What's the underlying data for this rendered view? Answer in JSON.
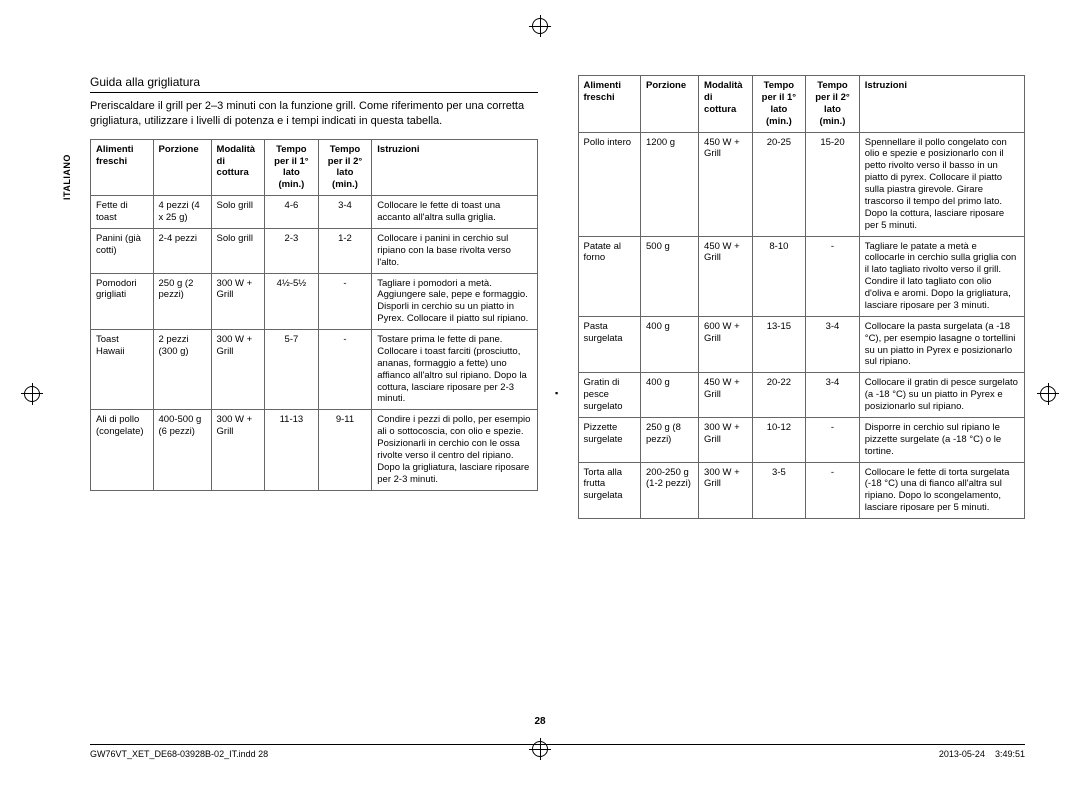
{
  "side_label": "ITALIANO",
  "section_title": "Guida alla grigliatura",
  "intro": "Preriscaldare il grill per 2–3 minuti con la funzione grill.\nCome riferimento per una corretta grigliatura, utilizzare i livelli di potenza e i tempi indicati in questa tabella.",
  "headers": {
    "food": "Alimenti freschi",
    "portion": "Porzione",
    "mode": "Modalità di cottura",
    "time1": "Tempo per il 1° lato (min.)",
    "time2": "Tempo per il 2° lato (min.)",
    "instr": "Istruzioni"
  },
  "left_rows": [
    {
      "food": "Fette di toast",
      "portion": "4 pezzi (4 x 25 g)",
      "mode": "Solo grill",
      "t1": "4-6",
      "t2": "3-4",
      "instr": "Collocare le fette di toast una accanto all'altra sulla griglia."
    },
    {
      "food": "Panini (già cotti)",
      "portion": "2-4 pezzi",
      "mode": "Solo grill",
      "t1": "2-3",
      "t2": "1-2",
      "instr": "Collocare i panini in cerchio sul ripiano con la base rivolta verso l'alto."
    },
    {
      "food": "Pomodori grigliati",
      "portion": "250 g (2 pezzi)",
      "mode": "300 W + Grill",
      "t1": "4½-5½",
      "t2": "-",
      "instr": "Tagliare i pomodori a metà. Aggiungere sale, pepe e formaggio. Disporli in cerchio su un piatto in Pyrex. Collocare il piatto sul ripiano."
    },
    {
      "food": "Toast Hawaii",
      "portion": "2 pezzi (300 g)",
      "mode": "300 W + Grill",
      "t1": "5-7",
      "t2": "-",
      "instr": "Tostare prima le fette di pane. Collocare i toast farciti (prosciutto, ananas, formaggio a fette) uno affianco all'altro sul ripiano. Dopo la cottura, lasciare riposare per 2-3 minuti."
    },
    {
      "food": "Ali di pollo (congelate)",
      "portion": "400-500 g (6 pezzi)",
      "mode": "300 W + Grill",
      "t1": "11-13",
      "t2": "9-11",
      "instr": "Condire i pezzi di pollo, per esempio ali o sottocoscia, con olio e spezie. Posizionarli in cerchio con le ossa rivolte verso il centro del ripiano. Dopo la grigliatura, lasciare riposare per 2-3 minuti."
    }
  ],
  "right_rows": [
    {
      "food": "Pollo intero",
      "portion": "1200 g",
      "mode": "450 W + Grill",
      "t1": "20-25",
      "t2": "15-20",
      "instr": "Spennellare il pollo congelato con olio e spezie e posizionarlo con il petto rivolto verso il basso in un piatto di pyrex. Collocare il piatto sulla piastra girevole. Girare trascorso il tempo del primo lato. Dopo la cottura, lasciare riposare per 5 minuti."
    },
    {
      "food": "Patate al forno",
      "portion": "500 g",
      "mode": "450 W + Grill",
      "t1": "8-10",
      "t2": "-",
      "instr": "Tagliare le patate a metà e collocarle in cerchio sulla griglia con il lato tagliato rivolto verso il grill. Condire il lato tagliato con olio d'oliva e aromi. Dopo la grigliatura, lasciare riposare per 3 minuti."
    },
    {
      "food": "Pasta surgelata",
      "portion": "400 g",
      "mode": "600 W + Grill",
      "t1": "13-15",
      "t2": "3-4",
      "instr": "Collocare la pasta surgelata (a -18 °C), per esempio lasagne o tortellini su un piatto in Pyrex e posizionarlo sul ripiano."
    },
    {
      "food": "Gratin di pesce surgelato",
      "portion": "400 g",
      "mode": "450 W + Grill",
      "t1": "20-22",
      "t2": "3-4",
      "instr": "Collocare il gratin di pesce surgelato (a -18 °C) su un piatto in Pyrex e posizionarlo sul ripiano."
    },
    {
      "food": "Pizzette surgelate",
      "portion": "250 g (8 pezzi)",
      "mode": "300 W + Grill",
      "t1": "10-12",
      "t2": "-",
      "instr": "Disporre in cerchio sul ripiano le pizzette surgelate (a -18 °C) o le tortine."
    },
    {
      "food": "Torta alla frutta surgelata",
      "portion": "200-250 g (1-2 pezzi)",
      "mode": "300 W + Grill",
      "t1": "3-5",
      "t2": "-",
      "instr": "Collocare le fette di torta surgelata (-18 °C) una di fianco all'altra sul ripiano. Dopo lo scongelamento, lasciare riposare per 5 minuti."
    }
  ],
  "page_number": "28",
  "footer_left": "GW76VT_XET_DE68-03928B-02_IT.indd   28",
  "footer_right_date": "2013-05-24",
  "footer_right_time": "3:49:51"
}
